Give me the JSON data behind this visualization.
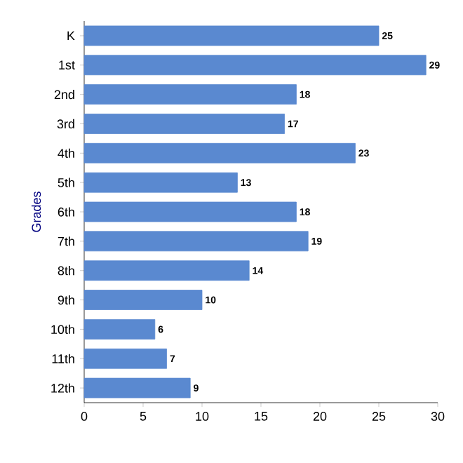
{
  "chart_data": {
    "type": "bar",
    "orientation": "horizontal",
    "ylabel": "Grades",
    "categories": [
      "K",
      "1st",
      "2nd",
      "3rd",
      "4th",
      "5th",
      "6th",
      "7th",
      "8th",
      "9th",
      "10th",
      "11th",
      "12th"
    ],
    "values": [
      25,
      29,
      18,
      17,
      23,
      13,
      18,
      19,
      14,
      10,
      6,
      7,
      9
    ],
    "color": "#5a89d0",
    "xlim": [
      0,
      30
    ],
    "xticks": [
      0,
      5,
      10,
      15,
      20,
      25,
      30
    ],
    "data_labels": true
  }
}
